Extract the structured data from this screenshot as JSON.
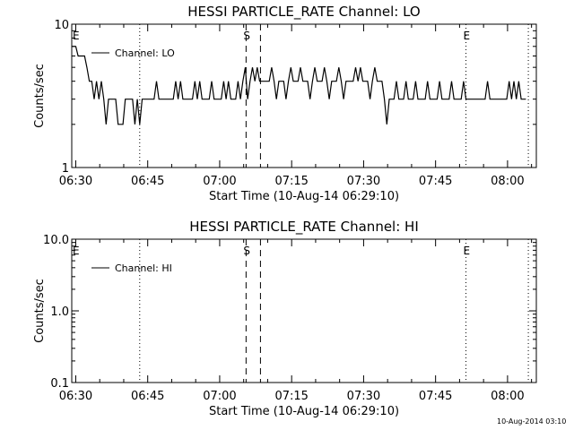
{
  "footer_stamp": "10-Aug-2014 03:10",
  "chart_data": [
    {
      "type": "line",
      "title": "HESSI PARTICLE_RATE Channel: LO",
      "xlabel": "Start Time (10-Aug-14 06:29:10)",
      "ylabel": "Counts/sec",
      "y_scale": "log",
      "ylim": [
        1,
        10
      ],
      "y_ticks": [
        {
          "value": 10,
          "label": "10"
        },
        {
          "value": 1,
          "label": "1"
        }
      ],
      "xlim": [
        "06:29:10",
        "08:06:00"
      ],
      "x_ticks": [
        "06:30",
        "06:45",
        "07:00",
        "07:15",
        "07:30",
        "07:45",
        "08:00"
      ],
      "legend": {
        "position": "top-left",
        "entries": [
          "Channel: LO"
        ]
      },
      "event_lines": [
        {
          "time": "06:43:20",
          "style": "dotted",
          "label": ""
        },
        {
          "time": "07:05:30",
          "style": "dashed",
          "label": "S"
        },
        {
          "time": "07:08:30",
          "style": "dashed",
          "label": ""
        },
        {
          "time": "07:51:20",
          "style": "dotted",
          "label": "E"
        },
        {
          "time": "08:04:20",
          "style": "dotted",
          "label": ""
        }
      ],
      "edge_label": "E",
      "series": [
        {
          "name": "Channel: LO",
          "points": [
            [
              "06:29:10",
              7
            ],
            [
              "06:30:00",
              7
            ],
            [
              "06:30:30",
              6
            ],
            [
              "06:31:50",
              6
            ],
            [
              "06:32:20",
              5
            ],
            [
              "06:32:50",
              4
            ],
            [
              "06:33:20",
              4
            ],
            [
              "06:33:50",
              3
            ],
            [
              "06:34:20",
              4
            ],
            [
              "06:34:50",
              3
            ],
            [
              "06:35:20",
              4
            ],
            [
              "06:35:50",
              3
            ],
            [
              "06:36:20",
              2
            ],
            [
              "06:36:50",
              3
            ],
            [
              "06:38:20",
              3
            ],
            [
              "06:38:50",
              2
            ],
            [
              "06:39:50",
              2
            ],
            [
              "06:40:20",
              3
            ],
            [
              "06:41:50",
              3
            ],
            [
              "06:42:20",
              2
            ],
            [
              "06:42:50",
              3
            ],
            [
              "06:43:20",
              2
            ],
            [
              "06:43:50",
              3
            ],
            [
              "06:46:20",
              3
            ],
            [
              "06:46:50",
              4
            ],
            [
              "06:47:20",
              3
            ],
            [
              "06:50:20",
              3
            ],
            [
              "06:50:50",
              4
            ],
            [
              "06:51:20",
              3
            ],
            [
              "06:51:50",
              4
            ],
            [
              "06:52:20",
              3
            ],
            [
              "06:54:20",
              3
            ],
            [
              "06:54:50",
              4
            ],
            [
              "06:55:20",
              3
            ],
            [
              "06:55:50",
              4
            ],
            [
              "06:56:20",
              3
            ],
            [
              "06:57:50",
              3
            ],
            [
              "06:58:20",
              4
            ],
            [
              "06:58:50",
              3
            ],
            [
              "07:00:20",
              3
            ],
            [
              "07:00:50",
              4
            ],
            [
              "07:01:20",
              3
            ],
            [
              "07:01:50",
              4
            ],
            [
              "07:02:20",
              3
            ],
            [
              "07:03:20",
              3
            ],
            [
              "07:03:50",
              4
            ],
            [
              "07:04:20",
              3
            ],
            [
              "07:04:50",
              4
            ],
            [
              "07:05:20",
              5
            ],
            [
              "07:05:50",
              3
            ],
            [
              "07:06:20",
              4
            ],
            [
              "07:06:50",
              5
            ],
            [
              "07:07:20",
              4
            ],
            [
              "07:07:50",
              5
            ],
            [
              "07:08:20",
              4
            ],
            [
              "07:10:20",
              4
            ],
            [
              "07:10:50",
              5
            ],
            [
              "07:11:20",
              4
            ],
            [
              "07:11:50",
              3
            ],
            [
              "07:12:20",
              4
            ],
            [
              "07:13:20",
              4
            ],
            [
              "07:13:50",
              3
            ],
            [
              "07:14:20",
              4
            ],
            [
              "07:14:50",
              5
            ],
            [
              "07:15:20",
              4
            ],
            [
              "07:16:20",
              4
            ],
            [
              "07:16:50",
              5
            ],
            [
              "07:17:20",
              4
            ],
            [
              "07:18:20",
              4
            ],
            [
              "07:18:50",
              3
            ],
            [
              "07:19:20",
              4
            ],
            [
              "07:19:50",
              5
            ],
            [
              "07:20:20",
              4
            ],
            [
              "07:21:20",
              4
            ],
            [
              "07:21:50",
              5
            ],
            [
              "07:22:20",
              4
            ],
            [
              "07:22:50",
              3
            ],
            [
              "07:23:20",
              4
            ],
            [
              "07:24:20",
              4
            ],
            [
              "07:24:50",
              5
            ],
            [
              "07:25:20",
              4
            ],
            [
              "07:25:50",
              3
            ],
            [
              "07:26:20",
              4
            ],
            [
              "07:27:50",
              4
            ],
            [
              "07:28:20",
              5
            ],
            [
              "07:28:50",
              4
            ],
            [
              "07:29:20",
              5
            ],
            [
              "07:29:50",
              4
            ],
            [
              "07:30:50",
              4
            ],
            [
              "07:31:20",
              3
            ],
            [
              "07:31:50",
              4
            ],
            [
              "07:32:20",
              5
            ],
            [
              "07:32:50",
              4
            ],
            [
              "07:33:50",
              4
            ],
            [
              "07:34:20",
              3
            ],
            [
              "07:34:50",
              2
            ],
            [
              "07:35:20",
              3
            ],
            [
              "07:36:20",
              3
            ],
            [
              "07:36:50",
              4
            ],
            [
              "07:37:20",
              3
            ],
            [
              "07:38:20",
              3
            ],
            [
              "07:38:50",
              4
            ],
            [
              "07:39:20",
              3
            ],
            [
              "07:40:20",
              3
            ],
            [
              "07:40:50",
              4
            ],
            [
              "07:41:20",
              3
            ],
            [
              "07:42:50",
              3
            ],
            [
              "07:43:20",
              4
            ],
            [
              "07:43:50",
              3
            ],
            [
              "07:45:20",
              3
            ],
            [
              "07:45:50",
              4
            ],
            [
              "07:46:20",
              3
            ],
            [
              "07:47:50",
              3
            ],
            [
              "07:48:20",
              4
            ],
            [
              "07:48:50",
              3
            ],
            [
              "07:50:20",
              3
            ],
            [
              "07:50:50",
              4
            ],
            [
              "07:51:20",
              3
            ],
            [
              "07:55:20",
              3
            ],
            [
              "07:55:50",
              4
            ],
            [
              "07:56:20",
              3
            ],
            [
              "07:59:50",
              3
            ],
            [
              "08:00:20",
              4
            ],
            [
              "08:00:50",
              3
            ],
            [
              "08:01:20",
              4
            ],
            [
              "08:01:50",
              3
            ],
            [
              "08:02:20",
              4
            ],
            [
              "08:02:50",
              3
            ],
            [
              "08:03:50",
              3
            ]
          ]
        }
      ]
    },
    {
      "type": "line",
      "title": "HESSI PARTICLE_RATE Channel: HI",
      "xlabel": "Start Time (10-Aug-14 06:29:10)",
      "ylabel": "Counts/sec",
      "y_scale": "log",
      "ylim": [
        0.1,
        10
      ],
      "y_ticks": [
        {
          "value": 10,
          "label": "10.0"
        },
        {
          "value": 1,
          "label": "1.0"
        },
        {
          "value": 0.1,
          "label": "0.1"
        }
      ],
      "xlim": [
        "06:29:10",
        "08:06:00"
      ],
      "x_ticks": [
        "06:30",
        "06:45",
        "07:00",
        "07:15",
        "07:30",
        "07:45",
        "08:00"
      ],
      "legend": {
        "position": "top-left",
        "entries": [
          "Channel: HI"
        ]
      },
      "event_lines": [
        {
          "time": "06:43:20",
          "style": "dotted",
          "label": ""
        },
        {
          "time": "07:05:30",
          "style": "dashed",
          "label": "S"
        },
        {
          "time": "07:08:30",
          "style": "dashed",
          "label": ""
        },
        {
          "time": "07:51:20",
          "style": "dotted",
          "label": "E"
        },
        {
          "time": "08:04:20",
          "style": "dotted",
          "label": ""
        }
      ],
      "edge_label": "E",
      "series": [
        {
          "name": "Channel: HI",
          "points": []
        }
      ]
    }
  ]
}
